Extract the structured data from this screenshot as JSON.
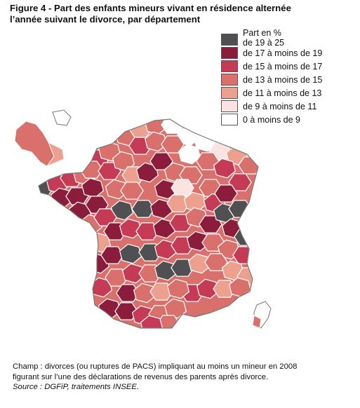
{
  "title_line1": "Figure 4 - Part des enfants mineurs vivant en résidence alternée",
  "title_line2": "l’année suivant le divorce, par département",
  "legend": {
    "header_line1": "Part en %",
    "header_line2": "de 19 à 25",
    "items": [
      {
        "label": "",
        "color": "#505052"
      },
      {
        "label": "de 17 à moins de 19",
        "color": "#8b1c3c"
      },
      {
        "label": "de 15 à moins de 17",
        "color": "#c53a55"
      },
      {
        "label": "de 13 à moins de 15",
        "color": "#d9706b"
      },
      {
        "label": "de 11 à moins de 13",
        "color": "#eea08f"
      },
      {
        "label": "de 9 à moins de 11",
        "color": "#fbe3e1"
      },
      {
        "label": "0 à moins de 9",
        "color": "#ffffff"
      }
    ]
  },
  "note": {
    "champ": "Champ : divorces (ou ruptures de PACS) impliquant au moins un mineur en 2008 figurant sur l’une des déclarations de revenus des parents après divorce.",
    "source": "Source : DGFiP, traitements INSEE."
  }
}
